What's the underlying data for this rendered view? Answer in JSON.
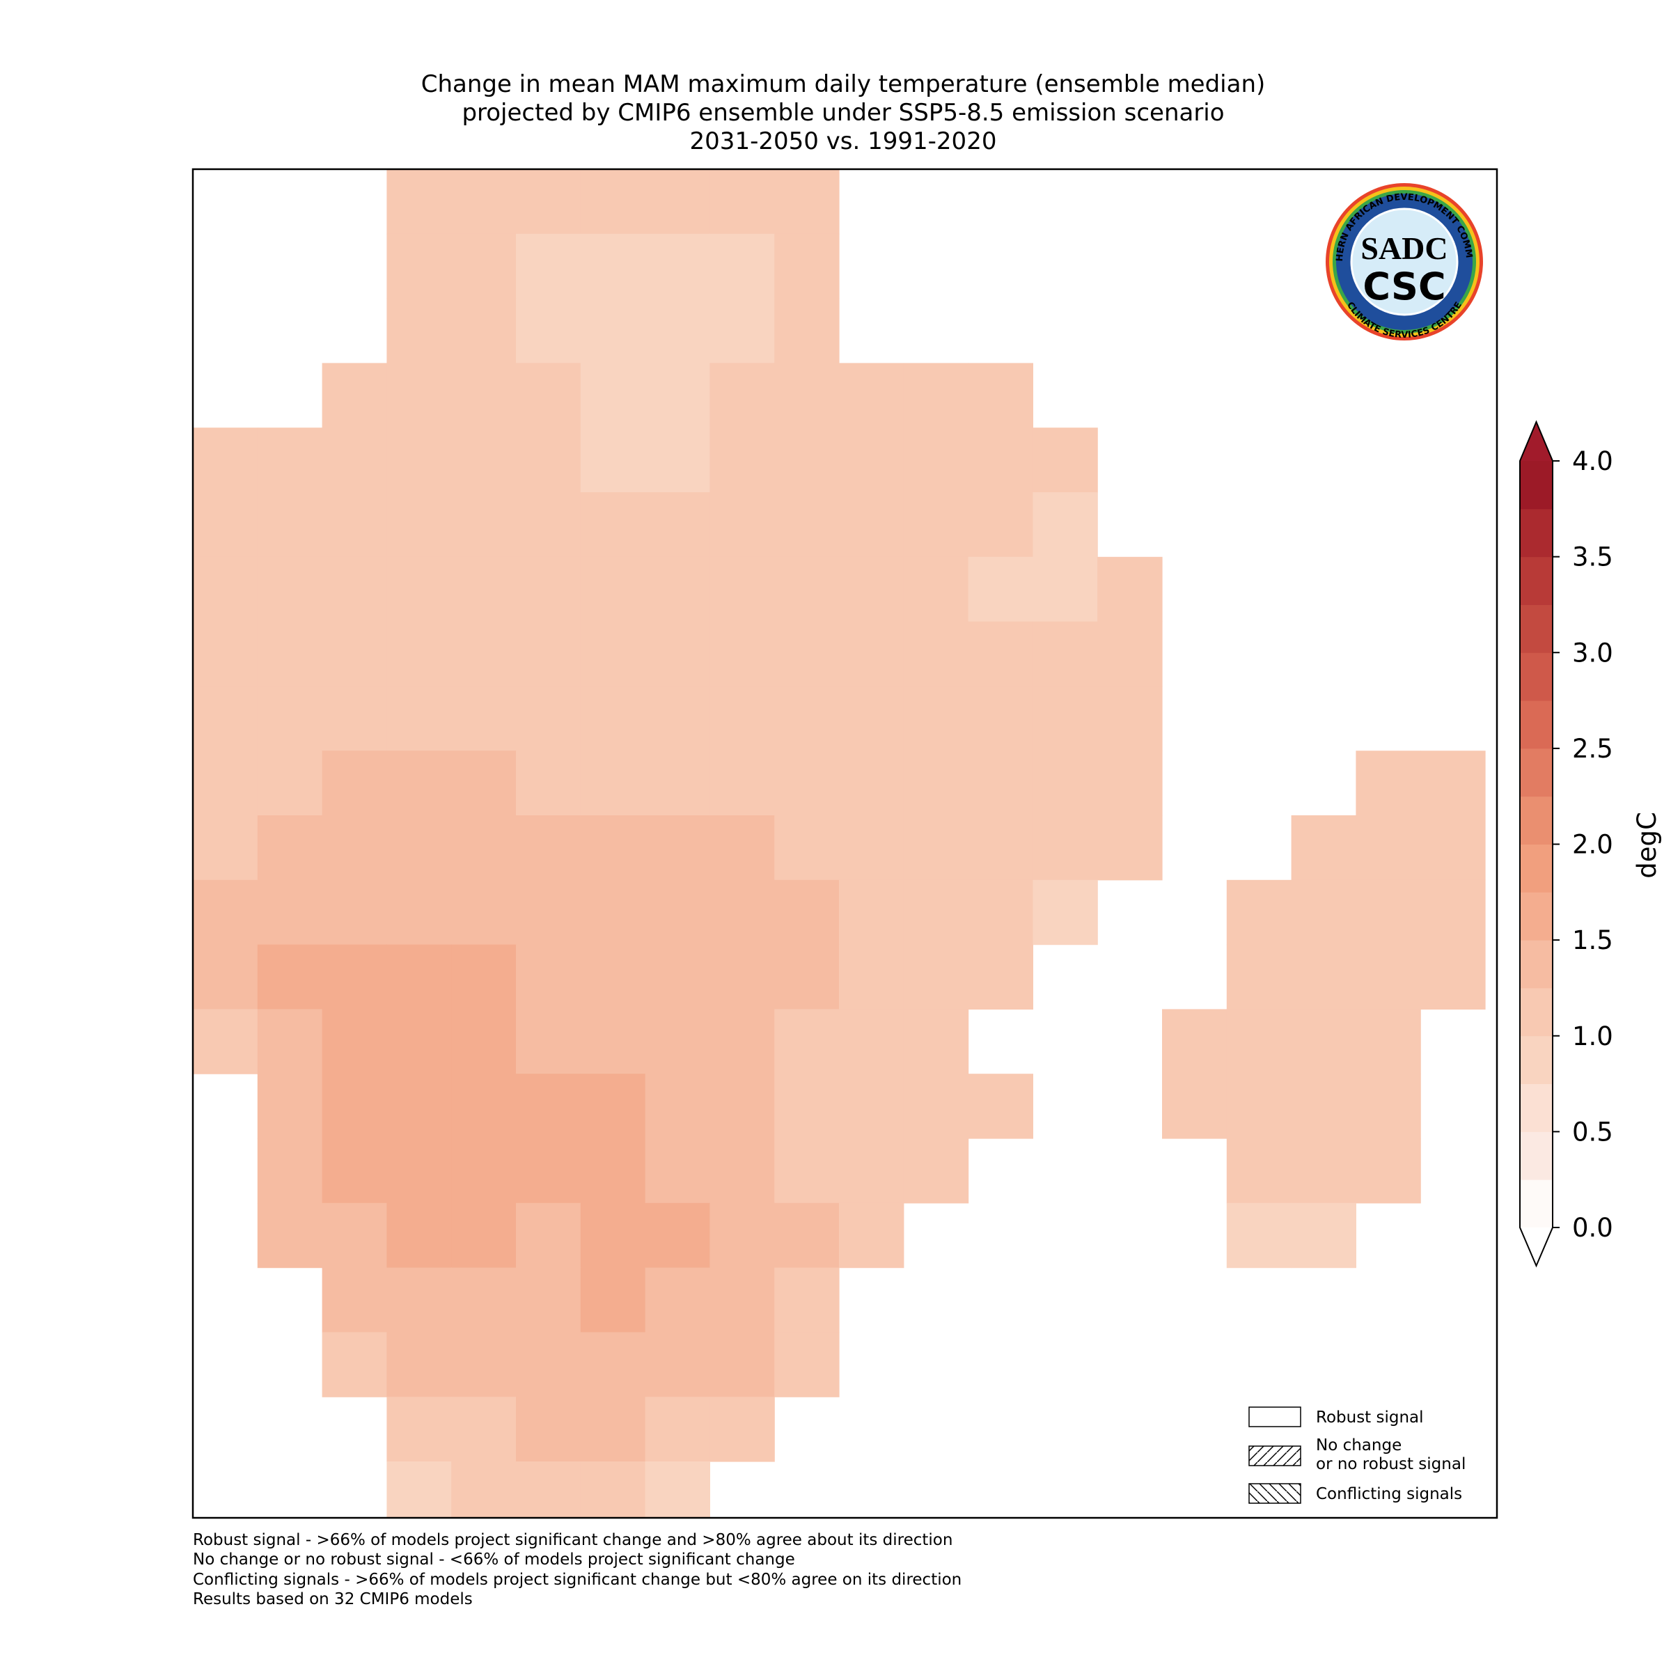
{
  "title": [
    "Change in mean MAM maximum daily temperature (ensemble median)",
    "projected by CMIP6 ensemble under SSP5-8.5 emission scenario",
    "2031-2050 vs. 1991-2020"
  ],
  "map": {
    "type": "grid",
    "cells": [
      [
        null,
        null,
        null,
        1.1,
        1.1,
        1.1,
        1.1,
        1.1,
        1.1,
        1.1,
        null,
        null,
        null,
        null,
        null,
        null,
        null,
        null,
        null,
        null
      ],
      [
        null,
        null,
        null,
        1.1,
        1.1,
        0.9,
        0.9,
        0.9,
        0.9,
        1.1,
        null,
        null,
        null,
        null,
        null,
        null,
        null,
        null,
        null,
        null
      ],
      [
        null,
        null,
        null,
        1.1,
        1.1,
        0.9,
        0.85,
        0.85,
        0.9,
        1.1,
        null,
        null,
        null,
        null,
        null,
        null,
        null,
        null,
        null,
        null
      ],
      [
        null,
        null,
        1.1,
        1.1,
        1.1,
        1.1,
        0.85,
        0.85,
        1.0,
        1.1,
        1.1,
        1.1,
        1.1,
        null,
        null,
        null,
        null,
        null,
        null,
        null
      ],
      [
        1.1,
        1.1,
        1.1,
        1.1,
        1.1,
        1.1,
        0.85,
        0.85,
        1.1,
        1.1,
        1.1,
        1.1,
        1.1,
        1.1,
        null,
        null,
        null,
        null,
        null,
        null
      ],
      [
        1.1,
        1.1,
        1.1,
        1.1,
        1.1,
        1.1,
        1.1,
        1.1,
        1.1,
        1.1,
        1.1,
        1.1,
        1.1,
        0.95,
        null,
        null,
        null,
        null,
        null,
        null
      ],
      [
        1.1,
        1.1,
        1.1,
        1.1,
        1.1,
        1.1,
        1.1,
        1.1,
        1.1,
        1.1,
        1.1,
        1.1,
        0.95,
        0.95,
        1.1,
        null,
        null,
        null,
        null,
        null
      ],
      [
        1.1,
        1.1,
        1.1,
        1.1,
        1.1,
        1.1,
        1.1,
        1.1,
        1.1,
        1.1,
        1.1,
        1.1,
        1.1,
        1.1,
        1.1,
        null,
        null,
        null,
        null,
        null
      ],
      [
        1.15,
        1.15,
        1.15,
        1.15,
        1.15,
        1.15,
        1.1,
        1.1,
        1.1,
        1.1,
        1.1,
        1.1,
        1.1,
        1.1,
        1.1,
        null,
        null,
        null,
        null,
        null
      ],
      [
        1.2,
        1.2,
        1.25,
        1.25,
        1.25,
        1.2,
        1.2,
        1.15,
        1.2,
        1.1,
        1.1,
        1.1,
        1.1,
        1.1,
        1.1,
        null,
        null,
        null,
        1.0,
        1.0
      ],
      [
        1.2,
        1.25,
        1.3,
        1.35,
        1.3,
        1.3,
        1.3,
        1.3,
        1.25,
        1.2,
        1.1,
        1.1,
        1.1,
        1.1,
        1.0,
        null,
        null,
        1.05,
        1.05,
        1.05
      ],
      [
        1.25,
        1.3,
        1.35,
        1.35,
        1.35,
        1.35,
        1.3,
        1.3,
        1.3,
        1.25,
        1.1,
        1.1,
        1.0,
        0.95,
        null,
        null,
        1.1,
        1.1,
        1.1,
        1.05
      ],
      [
        1.3,
        1.5,
        1.5,
        1.5,
        1.5,
        1.4,
        1.35,
        1.35,
        1.3,
        1.3,
        1.1,
        1.1,
        1.0,
        null,
        null,
        null,
        1.1,
        1.1,
        1.1,
        1.0
      ],
      [
        1.1,
        1.45,
        1.5,
        1.55,
        1.55,
        1.4,
        1.4,
        1.35,
        1.3,
        1.2,
        1.1,
        1.1,
        null,
        null,
        null,
        1.1,
        1.1,
        1.1,
        1.05,
        null
      ],
      [
        null,
        1.45,
        1.55,
        1.55,
        1.5,
        1.6,
        1.5,
        1.4,
        1.3,
        1.2,
        1.2,
        1.1,
        1.1,
        null,
        null,
        1.1,
        1.1,
        1.1,
        1.0,
        null
      ],
      [
        null,
        1.4,
        1.5,
        1.55,
        1.5,
        1.6,
        1.55,
        1.45,
        1.3,
        1.2,
        1.15,
        1.1,
        null,
        null,
        null,
        null,
        1.05,
        1.05,
        1.0,
        null
      ],
      [
        null,
        1.35,
        1.45,
        1.5,
        1.5,
        1.45,
        1.5,
        1.5,
        1.4,
        1.3,
        1.15,
        null,
        null,
        null,
        null,
        null,
        0.95,
        0.95,
        null,
        null
      ],
      [
        null,
        null,
        1.3,
        1.35,
        1.4,
        1.45,
        1.5,
        1.45,
        1.35,
        1.2,
        null,
        null,
        null,
        null,
        null,
        null,
        null,
        null,
        null,
        null
      ],
      [
        null,
        null,
        1.2,
        1.3,
        1.35,
        1.35,
        1.35,
        1.3,
        1.25,
        1.1,
        null,
        null,
        null,
        null,
        null,
        null,
        null,
        null,
        null,
        null
      ],
      [
        null,
        null,
        null,
        1.15,
        1.2,
        1.25,
        1.25,
        1.2,
        1.1,
        null,
        null,
        null,
        null,
        null,
        null,
        null,
        null,
        null,
        null,
        null
      ],
      [
        null,
        null,
        null,
        0.95,
        1.0,
        1.0,
        1.0,
        0.95,
        null,
        null,
        null,
        null,
        null,
        null,
        null,
        null,
        null,
        null,
        null,
        null
      ]
    ]
  },
  "colorbar": {
    "label": "degC",
    "lim": [
      0,
      4
    ],
    "colors": [
      "#fefaf8",
      "#fbe9e2",
      "#fbe0d3",
      "#f9d4c0",
      "#f8c9b2",
      "#f6bca2",
      "#f4ad8f",
      "#f19f7e",
      "#ea8f70",
      "#e27c62",
      "#da6a55",
      "#cf594a",
      "#c34a40",
      "#b83a37",
      "#ab2a2f",
      "#9c1a27"
    ],
    "over_color": "#a11b2b",
    "under_color": "#ffffff",
    "ticks": [
      {
        "value": 0,
        "label": "0.0"
      },
      {
        "value": 0.5,
        "label": "0.5"
      },
      {
        "value": 1,
        "label": "1.0"
      },
      {
        "value": 1.5,
        "label": "1.5"
      },
      {
        "value": 2,
        "label": "2.0"
      },
      {
        "value": 2.5,
        "label": "2.5"
      },
      {
        "value": 3,
        "label": "3.0"
      },
      {
        "value": 3.5,
        "label": "3.5"
      },
      {
        "value": 4,
        "label": "4.0"
      }
    ]
  },
  "legend": [
    [
      "Robust signal"
    ],
    [
      "No change",
      "or no robust signal"
    ],
    [
      "Conflicting signals"
    ]
  ],
  "notes": [
    "Robust signal - >66% of models project significant change and >80% agree about its direction",
    "No change or no robust signal - <66% of models project significant change",
    "Conflicting signals - >66% of models project significant change but <80% agree on its direction",
    "Results based on 32 CMIP6 models"
  ],
  "logo": {
    "top": "SOUTHERN AFRICAN DEVELOPMENT COMMUNITY",
    "bottom": "CLIMATE SERVICES CENTRE",
    "mark": "SADC",
    "name": "CSC"
  }
}
